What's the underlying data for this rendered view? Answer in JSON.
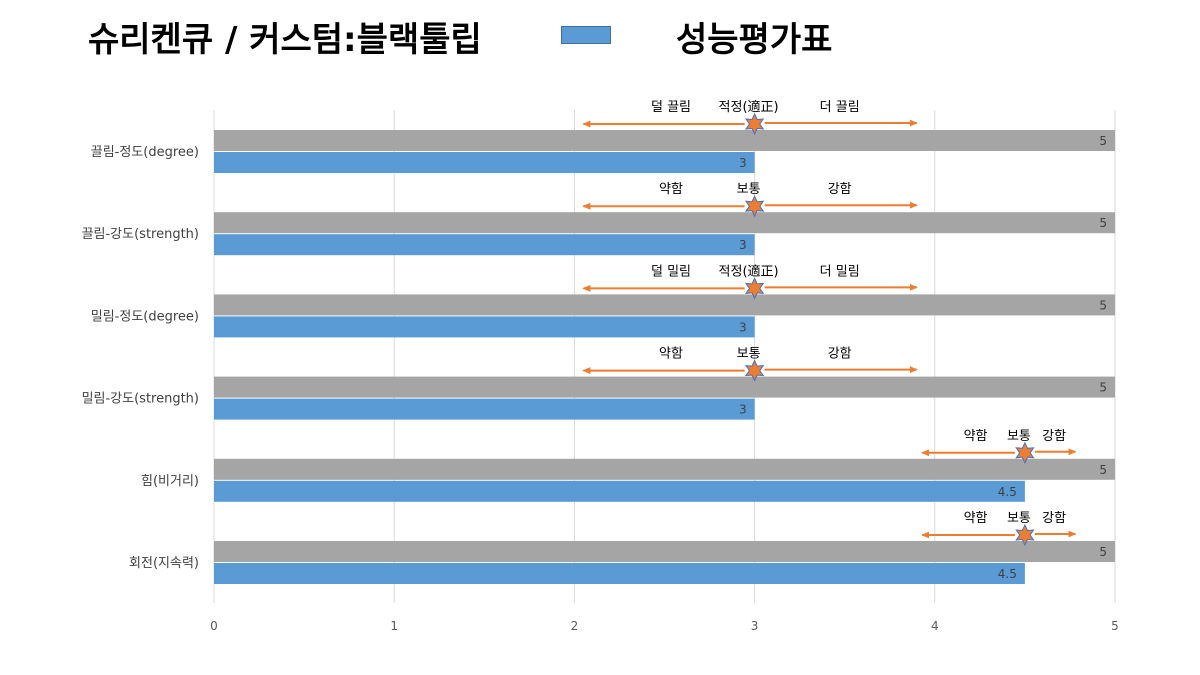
{
  "header": {
    "title": "슈리켄큐 / 커스텀:블랙툴립",
    "legend_label": "성능평가표"
  },
  "colors": {
    "series": "#5b9bd5",
    "max_bar": "#a5a5a5",
    "arrow": "#ed7d31",
    "grid": "#d9d9d9"
  },
  "chart_data": {
    "type": "bar",
    "orientation": "horizontal",
    "categories": [
      "끌림-정도(degree)",
      "끌림-강도(strength)",
      "밀림-정도(degree)",
      "밀림-강도(strength)",
      "힘(비거리)",
      "회전(지속력)"
    ],
    "series": [
      {
        "name": "",
        "values": [
          5,
          5,
          5,
          5,
          5,
          5
        ],
        "data_labels": [
          "5",
          "5",
          "5",
          "5",
          "5",
          "5"
        ]
      },
      {
        "name": "성능평가표",
        "values": [
          3,
          3,
          3,
          3,
          4.5,
          4.5
        ],
        "data_labels": [
          "3",
          "3",
          "3",
          "3",
          "4.5",
          "4.5"
        ]
      }
    ],
    "xlim": [
      0,
      5
    ],
    "xticks": [
      "0",
      "1",
      "2",
      "3",
      "4",
      "5"
    ],
    "grid": true,
    "legend": "top",
    "annotations": [
      {
        "left": "덜 끌림",
        "center": "적정(適正)",
        "right": "더 끌림",
        "marker": 3,
        "arrow_from": 2.05,
        "arrow_to": 3.9
      },
      {
        "left": "약함",
        "center": "보통",
        "right": "강함",
        "marker": 3,
        "arrow_from": 2.05,
        "arrow_to": 3.9
      },
      {
        "left": "덜 밀림",
        "center": "적정(適正)",
        "right": "더 밀림",
        "marker": 3,
        "arrow_from": 2.05,
        "arrow_to": 3.9
      },
      {
        "left": "약함",
        "center": "보통",
        "right": "강함",
        "marker": 3,
        "arrow_from": 2.05,
        "arrow_to": 3.9
      },
      {
        "left": "약함",
        "center": "보통",
        "right": "강함",
        "marker": 4.5,
        "arrow_from": 3.93,
        "arrow_to": 4.78
      },
      {
        "left": "약함",
        "center": "보통",
        "right": "강함",
        "marker": 4.5,
        "arrow_from": 3.93,
        "arrow_to": 4.78
      }
    ]
  }
}
